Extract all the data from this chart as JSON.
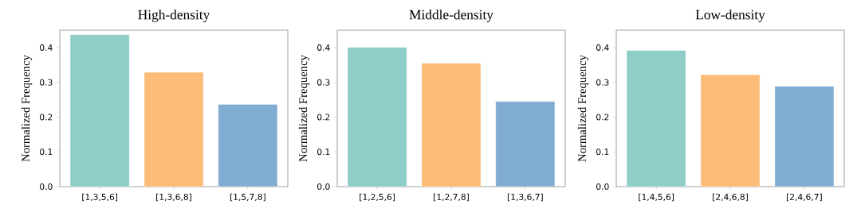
{
  "chart_data": [
    {
      "type": "bar",
      "title": "High-density",
      "ylabel": "Normalized Frequency",
      "categories": [
        "[1,3,5,6]",
        "[1,3,6,8]",
        "[1,5,7,8]"
      ],
      "values": [
        0.437,
        0.329,
        0.237
      ],
      "colors": [
        "#8ecdc8",
        "#fdbb78",
        "#80acd1"
      ],
      "ylim": [
        0,
        0.45
      ],
      "yticks": [
        {
          "value": 0,
          "label": "0.0"
        },
        {
          "value": 0.1,
          "label": "0.1"
        },
        {
          "value": 0.2,
          "label": "0.2"
        },
        {
          "value": 0.3,
          "label": "0.3"
        },
        {
          "value": 0.4,
          "label": "0.4"
        }
      ]
    },
    {
      "type": "bar",
      "title": "Middle-density",
      "ylabel": "Normalized Frequency",
      "categories": [
        "[1,2,5,6]",
        "[1,2,7,8]",
        "[1,3,6,7]"
      ],
      "values": [
        0.401,
        0.355,
        0.245
      ],
      "colors": [
        "#8ecdc8",
        "#fdbb78",
        "#80acd1"
      ],
      "ylim": [
        0,
        0.45
      ],
      "yticks": [
        {
          "value": 0,
          "label": "0.0"
        },
        {
          "value": 0.1,
          "label": "0.1"
        },
        {
          "value": 0.2,
          "label": "0.2"
        },
        {
          "value": 0.3,
          "label": "0.3"
        },
        {
          "value": 0.4,
          "label": "0.4"
        }
      ]
    },
    {
      "type": "bar",
      "title": "Low-density",
      "ylabel": "Normalized Frequency",
      "categories": [
        "[1,4,5,6]",
        "[2,4,6,8]",
        "[2,4,6,7]"
      ],
      "values": [
        0.392,
        0.322,
        0.289
      ],
      "colors": [
        "#8ecdc8",
        "#fdbb78",
        "#80acd1"
      ],
      "ylim": [
        0,
        0.45
      ],
      "yticks": [
        {
          "value": 0,
          "label": "0.0"
        },
        {
          "value": 0.1,
          "label": "0.1"
        },
        {
          "value": 0.2,
          "label": "0.2"
        },
        {
          "value": 0.3,
          "label": "0.3"
        },
        {
          "value": 0.4,
          "label": "0.4"
        }
      ]
    }
  ]
}
